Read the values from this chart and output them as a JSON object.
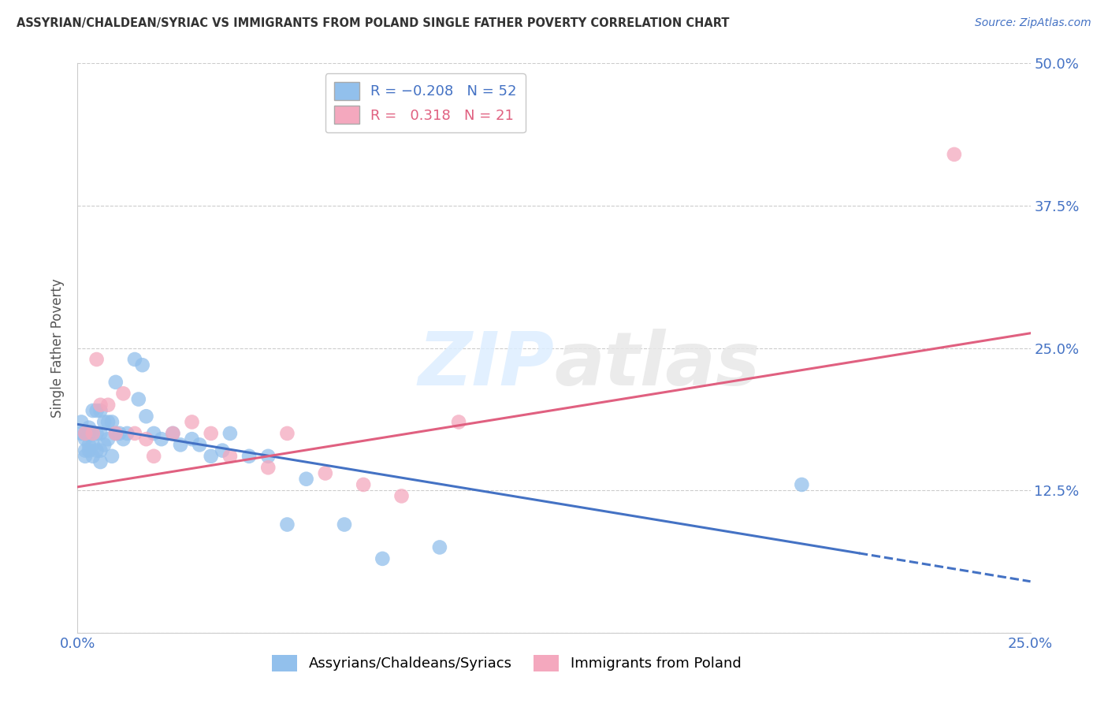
{
  "title": "ASSYRIAN/CHALDEAN/SYRIAC VS IMMIGRANTS FROM POLAND SINGLE FATHER POVERTY CORRELATION CHART",
  "source": "Source: ZipAtlas.com",
  "ylabel": "Single Father Poverty",
  "xlim": [
    0.0,
    0.25
  ],
  "ylim": [
    0.0,
    0.5
  ],
  "blue_R": -0.208,
  "blue_N": 52,
  "pink_R": 0.318,
  "pink_N": 21,
  "blue_color": "#92C0EC",
  "pink_color": "#F4A8BE",
  "blue_line_color": "#4472C4",
  "pink_line_color": "#E06080",
  "legend_label_blue": "Assyrians/Chaldeans/Syriacs",
  "legend_label_pink": "Immigrants from Poland",
  "watermark_zip": "ZIP",
  "watermark_atlas": "atlas",
  "blue_line_x0": 0.0,
  "blue_line_y0": 0.183,
  "blue_line_x1": 0.25,
  "blue_line_y1": 0.045,
  "blue_line_solid_end": 0.205,
  "pink_line_x0": 0.0,
  "pink_line_y0": 0.128,
  "pink_line_x1": 0.25,
  "pink_line_y1": 0.263,
  "blue_dots_x": [
    0.001,
    0.001,
    0.002,
    0.002,
    0.002,
    0.002,
    0.003,
    0.003,
    0.003,
    0.003,
    0.004,
    0.004,
    0.004,
    0.005,
    0.005,
    0.005,
    0.006,
    0.006,
    0.006,
    0.006,
    0.007,
    0.007,
    0.008,
    0.008,
    0.009,
    0.009,
    0.01,
    0.01,
    0.011,
    0.012,
    0.013,
    0.015,
    0.016,
    0.017,
    0.018,
    0.02,
    0.022,
    0.025,
    0.027,
    0.03,
    0.032,
    0.035,
    0.038,
    0.04,
    0.045,
    0.05,
    0.055,
    0.06,
    0.07,
    0.08,
    0.095,
    0.19
  ],
  "blue_dots_y": [
    0.175,
    0.185,
    0.155,
    0.16,
    0.17,
    0.175,
    0.16,
    0.165,
    0.175,
    0.18,
    0.155,
    0.165,
    0.195,
    0.16,
    0.175,
    0.195,
    0.15,
    0.16,
    0.175,
    0.195,
    0.165,
    0.185,
    0.17,
    0.185,
    0.155,
    0.185,
    0.175,
    0.22,
    0.175,
    0.17,
    0.175,
    0.24,
    0.205,
    0.235,
    0.19,
    0.175,
    0.17,
    0.175,
    0.165,
    0.17,
    0.165,
    0.155,
    0.16,
    0.175,
    0.155,
    0.155,
    0.095,
    0.135,
    0.095,
    0.065,
    0.075,
    0.13
  ],
  "pink_dots_x": [
    0.002,
    0.004,
    0.005,
    0.006,
    0.008,
    0.01,
    0.012,
    0.015,
    0.018,
    0.02,
    0.025,
    0.03,
    0.035,
    0.04,
    0.05,
    0.055,
    0.065,
    0.075,
    0.085,
    0.1,
    0.23
  ],
  "pink_dots_y": [
    0.175,
    0.175,
    0.24,
    0.2,
    0.2,
    0.175,
    0.21,
    0.175,
    0.17,
    0.155,
    0.175,
    0.185,
    0.175,
    0.155,
    0.145,
    0.175,
    0.14,
    0.13,
    0.12,
    0.185,
    0.42
  ]
}
